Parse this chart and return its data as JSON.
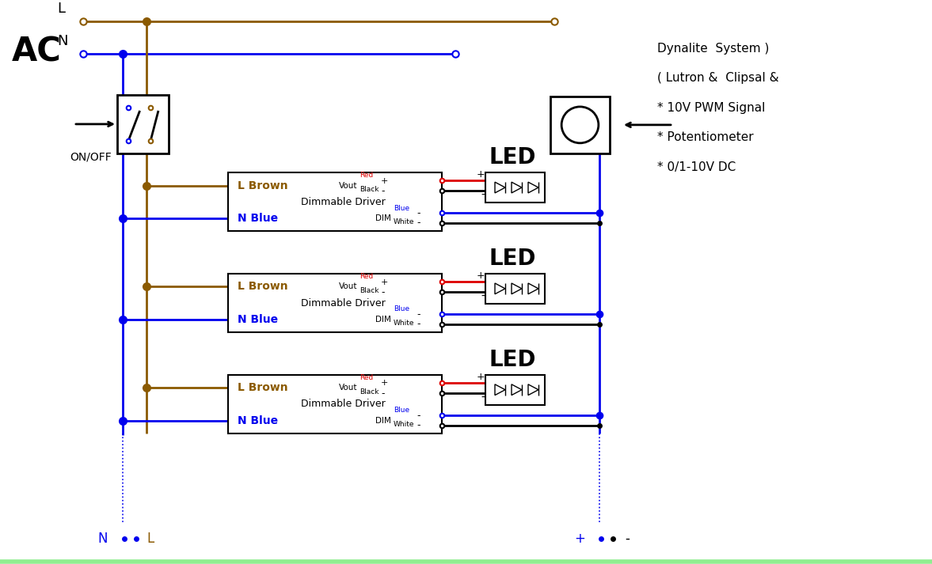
{
  "bg_color": "#ffffff",
  "brown_color": "#8B5A00",
  "blue_color": "#0000EE",
  "black_color": "#000000",
  "red_color": "#DD0000",
  "green_color": "#90EE90",
  "ac_label": "AC",
  "l_label": "L",
  "n_label": "N",
  "on_off_label": "ON/OFF",
  "led_label": "LED",
  "driver_label": "Dimmable Driver",
  "l_brown_label": "L Brown",
  "n_blue_label": "N Blue",
  "vout_label": "Vout",
  "dim_label": "DIM",
  "red_label": "Red",
  "black_label": "Black",
  "blue_label": "Blue",
  "white_label": "White",
  "notes": [
    "* 0/1-10V DC",
    "* Potentiometer",
    "* 10V PWM Signal",
    "( Lutron &  Clipsal &",
    "Dynalite  System )"
  ]
}
